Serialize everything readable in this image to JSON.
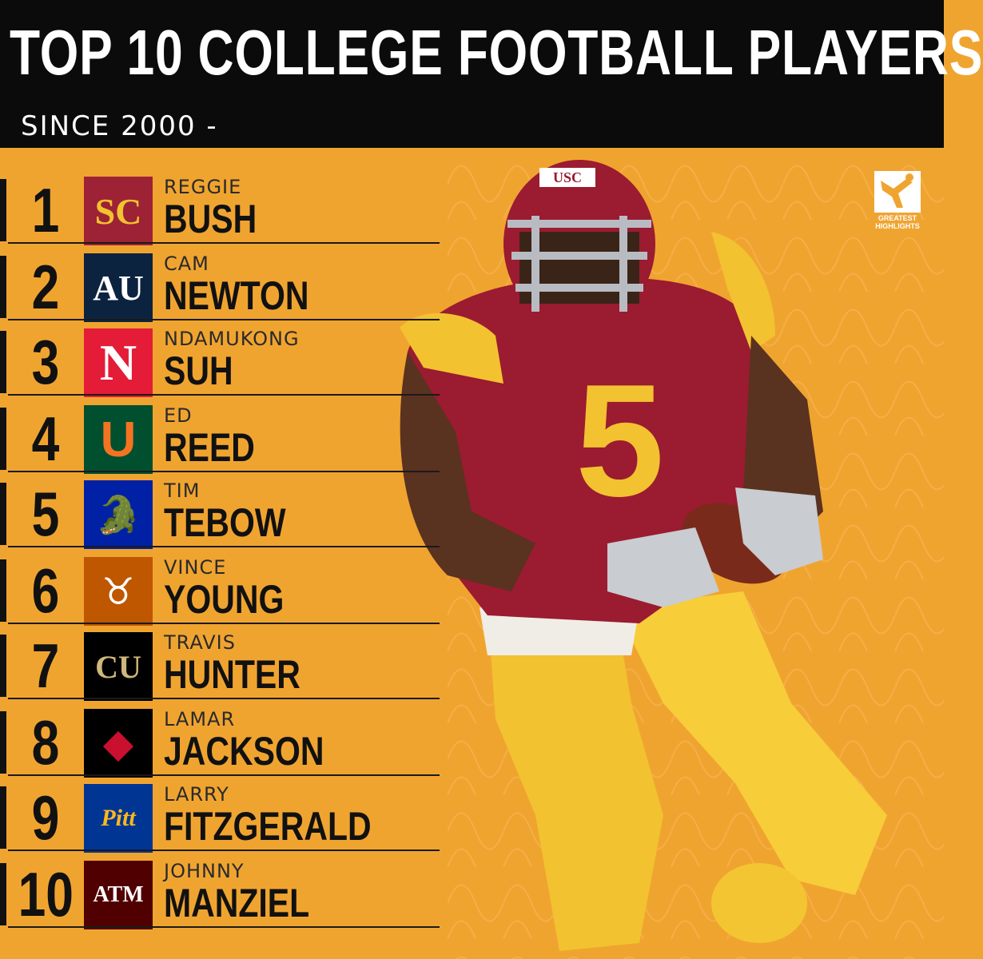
{
  "header": {
    "title": "TOP 10 COLLEGE FOOTBALL PLAYERS",
    "subtitle": "SINCE 2000 -"
  },
  "brand": {
    "line1": "GREATEST",
    "line2": "HIGHLIGHTS"
  },
  "player_photo": {
    "helmet_text": "USC",
    "jersey_number": "5"
  },
  "players": [
    {
      "rank": "1",
      "first": "REGGIE",
      "last": "BUSH",
      "logo": "usc-sc-logo",
      "color": "#9d2235"
    },
    {
      "rank": "2",
      "first": "CAM",
      "last": "NEWTON",
      "logo": "auburn-au-logo",
      "color": "#0c2340"
    },
    {
      "rank": "3",
      "first": "NDAMUKONG",
      "last": "SUH",
      "logo": "nebraska-n-logo",
      "color": "#e41c38"
    },
    {
      "rank": "4",
      "first": "ED",
      "last": "REED",
      "logo": "miami-u-logo",
      "color": "#005030"
    },
    {
      "rank": "5",
      "first": "TIM",
      "last": "TEBOW",
      "logo": "florida-gator-logo",
      "color": "#0021a5"
    },
    {
      "rank": "6",
      "first": "VINCE",
      "last": "YOUNG",
      "logo": "texas-longhorn-logo",
      "color": "#bf5700"
    },
    {
      "rank": "7",
      "first": "TRAVIS",
      "last": "HUNTER",
      "logo": "colorado-buffalo-logo",
      "color": "#000000"
    },
    {
      "rank": "8",
      "first": "LAMAR",
      "last": "JACKSON",
      "logo": "louisville-cardinal-logo",
      "color": "#000000"
    },
    {
      "rank": "9",
      "first": "LARRY",
      "last": "FITZGERALD",
      "logo": "pitt-script-logo",
      "color": "#003594"
    },
    {
      "rank": "10",
      "first": "JOHNNY",
      "last": "MANZIEL",
      "logo": "texas-am-atm-logo",
      "color": "#500000"
    }
  ]
}
